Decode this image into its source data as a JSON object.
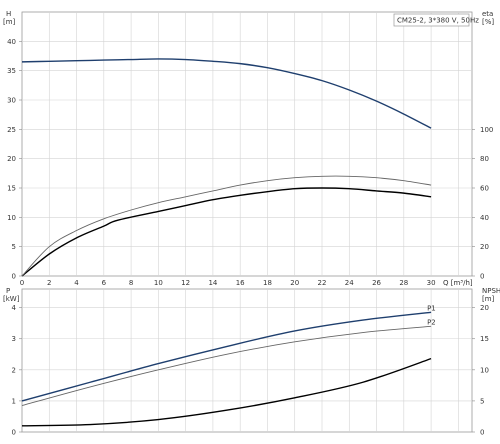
{
  "chart_data": [
    {
      "type": "line",
      "panel": "top",
      "title": "CM25-2, 3*380 V, 50Hz",
      "xlabel": "Q [m³/h]",
      "x_ticks": [
        "0",
        "2",
        "4",
        "6",
        "8",
        "10",
        "12",
        "14",
        "16",
        "18",
        "20",
        "22",
        "24",
        "26",
        "28",
        "30"
      ],
      "xlim": [
        0,
        33
      ],
      "left_axis": {
        "name": "H",
        "unit": "[m]",
        "ylim": [
          0,
          45
        ],
        "ticks": [
          "0",
          "5",
          "10",
          "15",
          "20",
          "25",
          "30",
          "35",
          "40"
        ]
      },
      "right_axis": {
        "name": "eta",
        "unit": "[%]",
        "ylim": [
          0,
          180
        ],
        "ticks": [
          "0",
          "20",
          "40",
          "60",
          "80",
          "100"
        ]
      },
      "grid": true,
      "series": [
        {
          "axis": "left",
          "color": "#1f3f6e",
          "x": [
            0,
            2,
            4,
            6,
            8,
            10,
            12,
            14,
            16,
            18,
            20,
            22,
            24,
            26,
            28,
            30
          ],
          "y": [
            36.5,
            36.6,
            36.7,
            36.8,
            36.9,
            37.0,
            36.9,
            36.6,
            36.2,
            35.5,
            34.5,
            33.3,
            31.7,
            29.8,
            27.6,
            25.2
          ]
        },
        {
          "axis": "right",
          "color": "#000000",
          "x": [
            0,
            2,
            4,
            6,
            7,
            10,
            12,
            14,
            16,
            18,
            20,
            22,
            24,
            26,
            28,
            30
          ],
          "y": [
            0,
            15,
            26,
            34,
            38,
            44,
            48,
            52,
            55,
            57.5,
            59.5,
            60,
            59.5,
            58,
            56.5,
            54
          ]
        },
        {
          "axis": "right",
          "color": "#666666",
          "x": [
            0,
            2,
            4,
            6,
            8,
            10,
            12,
            14,
            16,
            18,
            20,
            22,
            24,
            26,
            28,
            30
          ],
          "y": [
            0,
            20,
            31,
            39,
            45,
            50,
            54,
            58,
            62,
            65,
            67,
            68,
            68,
            67,
            65,
            62
          ]
        }
      ]
    },
    {
      "type": "line",
      "panel": "bottom",
      "xlim": [
        0,
        33
      ],
      "left_axis": {
        "name": "P",
        "unit": "[kW]",
        "ylim": [
          0,
          4.6
        ],
        "ticks": [
          "0",
          "1",
          "2",
          "3",
          "4"
        ]
      },
      "right_axis": {
        "name": "NPSH",
        "unit": "[m]",
        "ylim": [
          0,
          23
        ],
        "ticks": [
          "0",
          "5",
          "10",
          "15",
          "20"
        ]
      },
      "grid": true,
      "series": [
        {
          "name": "P1",
          "axis": "left",
          "color": "#1f3f6e",
          "x": [
            0,
            5,
            10,
            15,
            20,
            25,
            30
          ],
          "y": [
            1.0,
            1.6,
            2.2,
            2.75,
            3.25,
            3.6,
            3.85
          ]
        },
        {
          "name": "P2",
          "axis": "left",
          "color": "#666666",
          "x": [
            0,
            5,
            10,
            15,
            20,
            25,
            30
          ],
          "y": [
            0.85,
            1.45,
            2.0,
            2.5,
            2.9,
            3.2,
            3.4
          ]
        },
        {
          "axis": "right",
          "color": "#000000",
          "x": [
            0,
            5,
            10,
            15,
            20,
            25,
            30
          ],
          "y": [
            1.0,
            1.2,
            2.0,
            3.5,
            5.5,
            8.0,
            11.8
          ]
        }
      ]
    }
  ]
}
